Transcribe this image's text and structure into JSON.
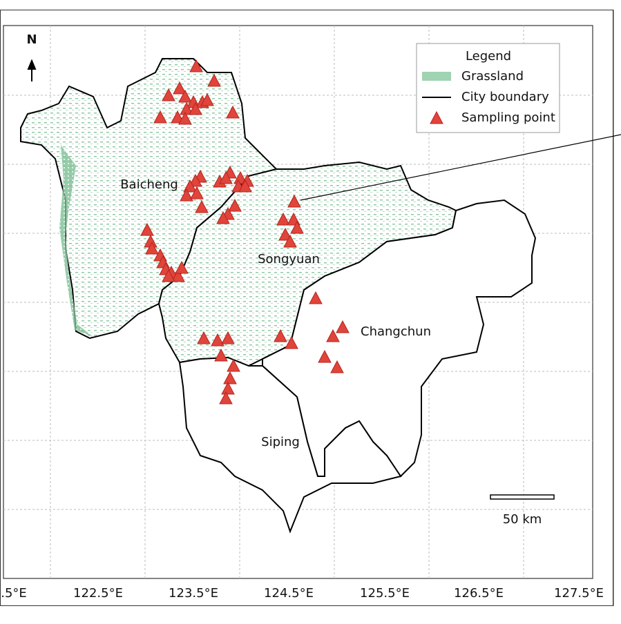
{
  "map": {
    "north": "N",
    "legend": {
      "title": "Legend",
      "items": [
        "Grassland",
        "City boundary",
        "Sampling point"
      ]
    },
    "cities": [
      "Baicheng",
      "Songyuan",
      "Changchun",
      "Siping"
    ],
    "x_tick_labels": [
      ".5°E",
      "122.5°E",
      "123.5°E",
      "124.5°E",
      "125.5°E",
      "126.5°E",
      "127.5°E"
    ],
    "scale_bar": "50 km"
  }
}
